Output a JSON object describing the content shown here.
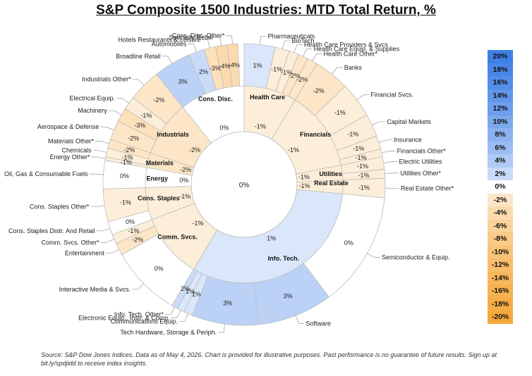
{
  "title": "S&P Composite 1500 Industries: MTD Total Return, %",
  "footnote": "Source: S&P Dow Jones Indices. Data as of May 4, 2026. Chart is provided for illustrative purposes. Past performance is no guarantee of future results. Sign up at bit.ly/spdjidd to receive index insights.",
  "legend": [
    {
      "label": "20%",
      "value": 20
    },
    {
      "label": "18%",
      "value": 18
    },
    {
      "label": "16%",
      "value": 16
    },
    {
      "label": "14%",
      "value": 14
    },
    {
      "label": "12%",
      "value": 12
    },
    {
      "label": "10%",
      "value": 10
    },
    {
      "label": "8%",
      "value": 8
    },
    {
      "label": "6%",
      "value": 6
    },
    {
      "label": "4%",
      "value": 4
    },
    {
      "label": "2%",
      "value": 2
    },
    {
      "label": "0%",
      "value": 0
    },
    {
      "label": "-2%",
      "value": -2
    },
    {
      "label": "-4%",
      "value": -4
    },
    {
      "label": "-6%",
      "value": -6
    },
    {
      "label": "-8%",
      "value": -8
    },
    {
      "label": "-10%",
      "value": -10
    },
    {
      "label": "-12%",
      "value": -12
    },
    {
      "label": "-14%",
      "value": -14
    },
    {
      "label": "-16%",
      "value": -16
    },
    {
      "label": "-18%",
      "value": -18
    },
    {
      "label": "-20%",
      "value": -20
    }
  ],
  "chart_data": {
    "type": "sunburst",
    "center_value": "0%",
    "sectors": [
      {
        "name": "Health Care",
        "value_label": "-1%",
        "value": -1,
        "weight": 8.5,
        "industries": [
          {
            "name": "Pharmaceuticals",
            "value_label": "1%",
            "value": 1,
            "weight": 3.5
          },
          {
            "name": "BioTech",
            "value_label": "-1%",
            "value": -1,
            "weight": 1.6
          },
          {
            "name": "Health Care Providers & Svcs",
            "value_label": "-1%",
            "value": -1,
            "weight": 1.1
          },
          {
            "name": "Health Care Equip. & Supplies",
            "value_label": "-2%",
            "value": -2,
            "weight": 1.1
          },
          {
            "name": "Health Care Other*",
            "value_label": "-2%",
            "value": -2,
            "weight": 1.2
          }
        ]
      },
      {
        "name": "Financials",
        "value_label": "-1%",
        "value": -1,
        "weight": 13,
        "industries": [
          {
            "name": "Banks",
            "value_label": "-2%",
            "value": -2,
            "weight": 4
          },
          {
            "name": "Financial Svcs.",
            "value_label": "-1%",
            "value": -1,
            "weight": 4
          },
          {
            "name": "Capital Markets",
            "value_label": "-1%",
            "value": -1,
            "weight": 2.6
          },
          {
            "name": "Insurance",
            "value_label": "-1%",
            "value": -1,
            "weight": 1.5
          },
          {
            "name": "Financials Other*",
            "value_label": "-1%",
            "value": -1,
            "weight": 0.9
          }
        ]
      },
      {
        "name": "Utilities",
        "value_label": "-1%",
        "value": -1,
        "weight": 2.4,
        "industries": [
          {
            "name": "Electric Utilities",
            "value_label": "-1%",
            "value": -1,
            "weight": 1.4
          },
          {
            "name": "Utilities Other*",
            "value_label": "-1%",
            "value": -1,
            "weight": 1.0
          }
        ]
      },
      {
        "name": "Real Estate",
        "value_label": "-1%",
        "value": -1,
        "weight": 2.2,
        "industries": [
          {
            "name": "Real Estate Other*",
            "value_label": "-1%",
            "value": -1,
            "weight": 2.2
          }
        ]
      },
      {
        "name": "Info. Tech.",
        "value_label": "1%",
        "value": 1,
        "weight": 31.5,
        "industries": [
          {
            "name": "Semiconductor & Equip.",
            "value_label": "0%",
            "value": 0,
            "weight": 13
          },
          {
            "name": "Software",
            "value_label": "3%",
            "value": 3,
            "weight": 8.5
          },
          {
            "name": "Tech Hardware, Storage & Periph.",
            "value_label": "3%",
            "value": 3,
            "weight": 7.5
          },
          {
            "name": "Communications Equip.",
            "value_label": "1%",
            "value": 1,
            "weight": 1.0
          },
          {
            "name": "Electronic Equip., Instr. & Comp.",
            "value_label": "1%",
            "value": 1,
            "weight": 0.8
          },
          {
            "name": "Info. Tech. Other*",
            "value_label": "2%",
            "value": 2,
            "weight": 0.7
          }
        ]
      },
      {
        "name": "Comm. Svcs.",
        "value_label": "-1%",
        "value": -1,
        "weight": 10.5,
        "industries": [
          {
            "name": "Interactive Media & Svcs.",
            "value_label": "0%",
            "value": 0,
            "weight": 8.0
          },
          {
            "name": "Entertainment",
            "value_label": "-2%",
            "value": -2,
            "weight": 1.4
          },
          {
            "name": "Comm. Svcs. Other*",
            "value_label": "-1%",
            "value": -1,
            "weight": 1.1
          }
        ]
      },
      {
        "name": "Cons. Staples",
        "value_label": "-1%",
        "value": -1,
        "weight": 5.2,
        "industries": [
          {
            "name": "Cons. Staples Distr. And Retail",
            "value_label": "0%",
            "value": 0,
            "weight": 1.5
          },
          {
            "name": "Cons. Staples Other*",
            "value_label": "-1%",
            "value": -1,
            "weight": 3.7
          }
        ]
      },
      {
        "name": "Energy",
        "value_label": "0%",
        "value": 0,
        "weight": 3.2,
        "industries": [
          {
            "name": "Oil, Gas & Consumable Fuels",
            "value_label": "0%",
            "value": 0,
            "weight": 3.2
          }
        ]
      },
      {
        "name": "Materials",
        "value_label": "-2%",
        "value": -2,
        "weight": 2.4,
        "industries": [
          {
            "name": "Energy Other*",
            "value_label": "-1%",
            "value": -1,
            "weight": 0.4
          },
          {
            "name": "Chemicals",
            "value_label": "-1%",
            "value": -1,
            "weight": 1.0
          },
          {
            "name": "Materials Other*",
            "value_label": "-2%",
            "value": -2,
            "weight": 1.0
          }
        ]
      },
      {
        "name": "Industrials",
        "value_label": "-2%",
        "value": -2,
        "weight": 9,
        "industries": [
          {
            "name": "Aerospace & Defense",
            "value_label": "-2%",
            "value": -2,
            "weight": 2.2
          },
          {
            "name": "Machinery",
            "value_label": "-3%",
            "value": -3,
            "weight": 1.6
          },
          {
            "name": "Electrical Equip.",
            "value_label": "-1%",
            "value": -1,
            "weight": 1.5
          },
          {
            "name": "Industrials Other*",
            "value_label": "-2%",
            "value": -2,
            "weight": 3.7
          }
        ]
      },
      {
        "name": "Cons. Disc.",
        "value_label": "0%",
        "value": 0,
        "weight": 10.5,
        "industries": [
          {
            "name": "Broadline Retail",
            "value_label": "3%",
            "value": 3,
            "weight": 4.2
          },
          {
            "name": "Automobiles",
            "value_label": "2%",
            "value": 2,
            "weight": 1.8
          },
          {
            "name": "Hotels Restaurants & Leisure",
            "value_label": "-3%",
            "value": -3,
            "weight": 1.3
          },
          {
            "name": "Specialty Retail",
            "value_label": "-4%",
            "value": -4,
            "weight": 1.3
          },
          {
            "name": "Cons. Disc. Other*",
            "value_label": "-4%",
            "value": -4,
            "weight": 1.2
          }
        ]
      }
    ],
    "colors": {
      "positive_max": "#3f7fe6",
      "neutral": "#ffffff",
      "negative_max": "#f5a83a"
    },
    "value_range": [
      -20,
      20
    ]
  }
}
